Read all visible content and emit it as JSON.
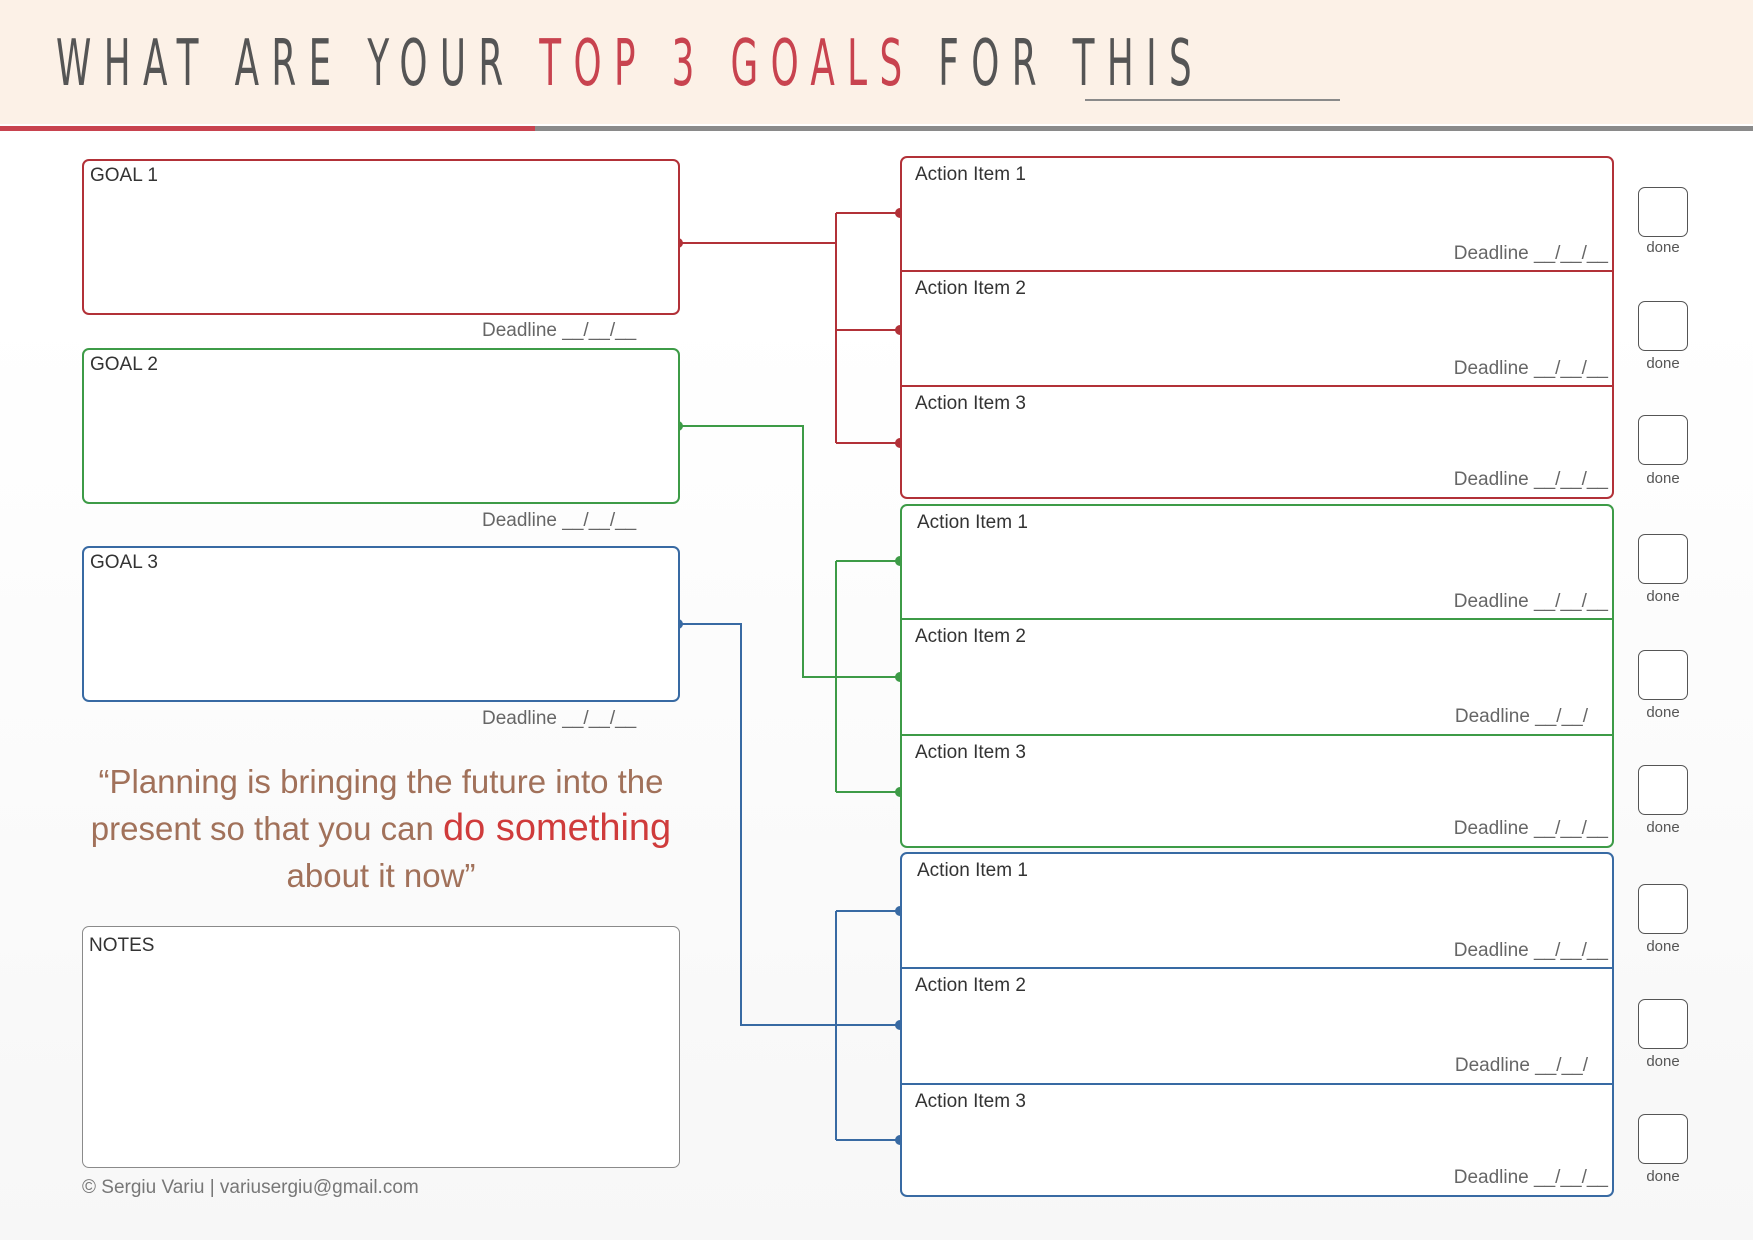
{
  "header": {
    "title_part1": "WHAT ARE YOUR ",
    "title_highlight": "TOP 3 GOALS",
    "title_part2": " FOR THIS"
  },
  "goals": [
    {
      "label": "GOAL 1",
      "deadline": "Deadline   __/__/__",
      "color": "#b23138"
    },
    {
      "label": "GOAL 2",
      "deadline": "Deadline   __/__/__",
      "color": "#3d9b47"
    },
    {
      "label": "GOAL 3",
      "deadline": "Deadline   __/__/__",
      "color": "#386aa3"
    }
  ],
  "action_groups": [
    {
      "color": "#b23138",
      "items": [
        {
          "label": "Action Item 1",
          "deadline": "Deadline   __/__/__"
        },
        {
          "label": "Action Item 2",
          "deadline": "Deadline   __/__/__"
        },
        {
          "label": "Action Item 3",
          "deadline": "Deadline   __/__/__"
        }
      ]
    },
    {
      "color": "#3d9b47",
      "items": [
        {
          "label": "Action Item 1",
          "deadline": "Deadline   __/__/__"
        },
        {
          "label": "Action Item 2",
          "deadline": "Deadline   __/__/"
        },
        {
          "label": "Action Item 3",
          "deadline": "Deadline   __/__/__"
        }
      ]
    },
    {
      "color": "#386aa3",
      "items": [
        {
          "label": "Action Item 1",
          "deadline": "Deadline   __/__/__"
        },
        {
          "label": "Action Item 2",
          "deadline": "Deadline   __/__/"
        },
        {
          "label": "Action Item 3",
          "deadline": "Deadline   __/__/__"
        }
      ]
    }
  ],
  "done_label": "done",
  "quote": {
    "part1": "“Planning is bringing the future into the present so that you can ",
    "emphasis": "do something",
    "part2": " about it now”"
  },
  "notes_label": "NOTES",
  "copyright": "© Sergiu Variu | variusergiu@gmail.com"
}
